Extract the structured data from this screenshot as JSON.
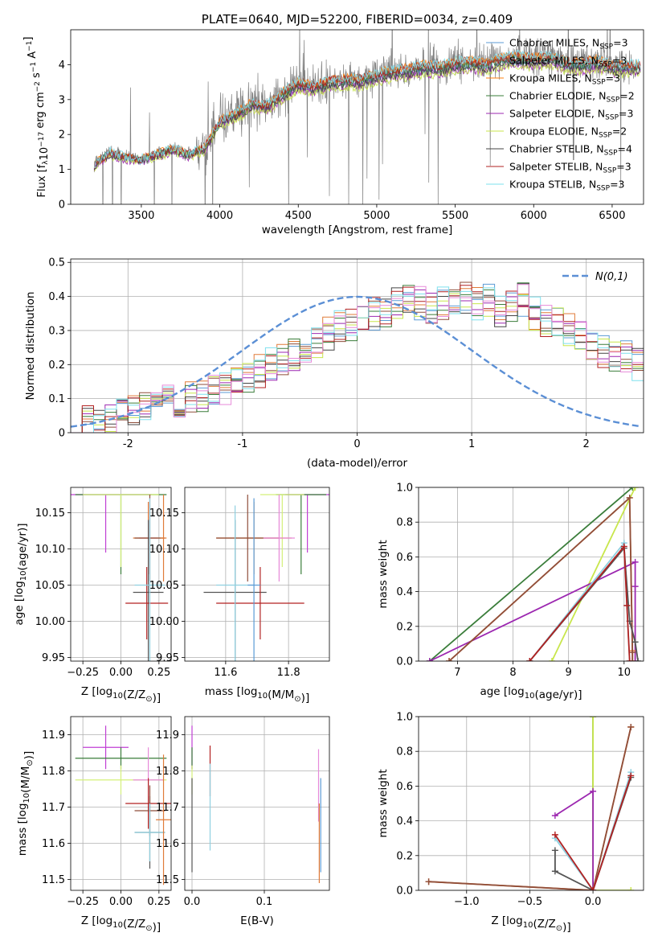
{
  "chart_data": [
    {
      "type": "line",
      "title": "PLATE=0640, MJD=52200, FIBERID=0034, z=0.409",
      "xlabel": "wavelength [Angstrom, rest frame]",
      "ylabel": "Flux [f_λ 10^-17 erg cm^-2 s^-1 A^-1]",
      "xlim": [
        3050,
        6700
      ],
      "ylim": [
        0,
        5
      ],
      "xticks": [
        3500,
        4000,
        4500,
        5000,
        5500,
        6000,
        6500
      ],
      "yticks": [
        0,
        1,
        2,
        3,
        4
      ],
      "grid": false,
      "legend_position": "top-right",
      "legend": [
        {
          "label": "Chabrier MILES, N",
          "sub": "SSP",
          "suffix": "=3",
          "color": "#5b9bd5"
        },
        {
          "label": "Salpeter MILES, N",
          "sub": "SSP",
          "suffix": "=3",
          "color": "#8f4e3a"
        },
        {
          "label": "Kroupa MILES, N",
          "sub": "SSP",
          "suffix": "=3",
          "color": "#ff7f0e"
        },
        {
          "label": "Chabrier ELODIE, N",
          "sub": "SSP",
          "suffix": "=2",
          "color": "#3a7d3a"
        },
        {
          "label": "Salpeter ELODIE, N",
          "sub": "SSP",
          "suffix": "=3",
          "color": "#9c27b0"
        },
        {
          "label": "Kroupa ELODIE, N",
          "sub": "SSP",
          "suffix": "=2",
          "color": "#c8e64c"
        },
        {
          "label": "Chabrier STELIB, N",
          "sub": "SSP",
          "suffix": "=4",
          "color": "#444444"
        },
        {
          "label": "Salpeter STELIB, N",
          "sub": "SSP",
          "suffix": "=3",
          "color": "#b22222"
        },
        {
          "label": "Kroupa STELIB, N",
          "sub": "SSP",
          "suffix": "=3",
          "color": "#7ee0ee"
        }
      ],
      "data_color": "#808080",
      "model_points": [
        [
          3200,
          1.15
        ],
        [
          3300,
          1.5
        ],
        [
          3400,
          1.35
        ],
        [
          3500,
          1.3
        ],
        [
          3600,
          1.45
        ],
        [
          3700,
          1.6
        ],
        [
          3800,
          1.45
        ],
        [
          3900,
          1.6
        ],
        [
          4000,
          2.4
        ],
        [
          4100,
          2.6
        ],
        [
          4200,
          2.9
        ],
        [
          4300,
          2.85
        ],
        [
          4400,
          3.2
        ],
        [
          4500,
          3.5
        ],
        [
          4600,
          3.4
        ],
        [
          4700,
          3.55
        ],
        [
          4800,
          3.6
        ],
        [
          4900,
          3.6
        ],
        [
          5000,
          3.75
        ],
        [
          5100,
          3.85
        ],
        [
          5200,
          3.9
        ],
        [
          5300,
          4.0
        ],
        [
          5400,
          3.95
        ],
        [
          5500,
          4.1
        ],
        [
          5600,
          4.1
        ],
        [
          5700,
          4.05
        ],
        [
          5800,
          4.2
        ],
        [
          5900,
          4.25
        ],
        [
          6000,
          4.2
        ],
        [
          6100,
          4.25
        ],
        [
          6200,
          4.1
        ],
        [
          6300,
          4.05
        ],
        [
          6400,
          4.15
        ],
        [
          6500,
          4.0
        ],
        [
          6600,
          4.0
        ]
      ]
    },
    {
      "type": "histogram",
      "xlabel": "(data-model)/error",
      "ylabel": "Normed distribution",
      "xlim": [
        -2.5,
        2.5
      ],
      "ylim": [
        0,
        0.51
      ],
      "xticks": [
        -2,
        -1,
        0,
        1,
        2
      ],
      "yticks": [
        0.0,
        0.1,
        0.2,
        0.3,
        0.4,
        0.5
      ],
      "grid": true,
      "legend_position": "top-right",
      "legend_label": "N(0,1)",
      "bin_width": 0.1,
      "bin_start": -2.5,
      "values": [
        0.02,
        0.03,
        0.03,
        0.04,
        0.05,
        0.06,
        0.07,
        0.08,
        0.09,
        0.09,
        0.1,
        0.11,
        0.12,
        0.13,
        0.15,
        0.16,
        0.18,
        0.2,
        0.21,
        0.23,
        0.25,
        0.27,
        0.29,
        0.31,
        0.32,
        0.34,
        0.35,
        0.36,
        0.38,
        0.39,
        0.38,
        0.37,
        0.38,
        0.37,
        0.4,
        0.38,
        0.39,
        0.36,
        0.37,
        0.39,
        0.35,
        0.33,
        0.32,
        0.3,
        0.28,
        0.26,
        0.24,
        0.23,
        0.22,
        0.2
      ]
    },
    {
      "type": "scatter",
      "xlabel": "Z [log10(Z/Z⊙)]",
      "ylabel": "age  [log10(age/yr)]",
      "xlim": [
        -0.33,
        0.33
      ],
      "ylim": [
        9.945,
        10.185
      ],
      "xticks": [
        -0.25,
        0.0,
        0.25
      ],
      "xticklabels": [
        "−0.25",
        "0.00",
        "0.25"
      ],
      "yticks": [
        9.95,
        10.0,
        10.05,
        10.1,
        10.15
      ],
      "yticklabels": [
        "9.95",
        "10.00",
        "10.05",
        "10.10",
        "10.15"
      ],
      "grid": true,
      "points": [
        {
          "x": -0.1,
          "y": 10.175,
          "xerr": 0.3,
          "yerr": 0.0,
          "yerr_lo": 0.08,
          "color": "#c13fd4"
        },
        {
          "x": 0.0,
          "y": 10.175,
          "xerr": 0.3,
          "yerr_lo": 0.11,
          "yerr": 0.0,
          "color": "#3a7d3a"
        },
        {
          "x": 0.0,
          "y": 10.175,
          "xerr": 0.25,
          "yerr_lo": 0.1,
          "yerr": 0.0,
          "color": "#d4f07a"
        },
        {
          "x": 0.18,
          "y": 10.115,
          "xerr": 0.06,
          "yerr": 0.05,
          "color": "#e78ad9"
        },
        {
          "x": 0.18,
          "y": 10.115,
          "xerr": 0.1,
          "yerr": 0.05,
          "color": "#e07b39"
        },
        {
          "x": 0.19,
          "y": 10.115,
          "xerr": 0.1,
          "yerr": 0.06,
          "color": "#8f4e3a"
        },
        {
          "x": 0.18,
          "y": 10.04,
          "xerr": 0.1,
          "yerr": 0.1,
          "color": "#555555"
        },
        {
          "x": 0.17,
          "y": 10.025,
          "xerr": 0.14,
          "yerr": 0.05,
          "color": "#b22222"
        },
        {
          "x": 0.19,
          "y": 10.05,
          "xerr": 0.1,
          "yerr": 0.12,
          "color": "#8fd0e0"
        },
        {
          "x": 0.28,
          "y": 10.115,
          "xerr": 0.02,
          "yerr": 0.06,
          "color": "#e07b39"
        }
      ]
    },
    {
      "type": "scatter",
      "xlabel": "mass [log10(M/M⊙)]",
      "ylabel": "",
      "xlim": [
        11.47,
        11.93
      ],
      "ylim": [
        9.945,
        10.185
      ],
      "xticks": [
        11.6,
        11.8
      ],
      "yticks": [
        9.95,
        10.0,
        10.05,
        10.1,
        10.15
      ],
      "yticklabels": [
        "9.95",
        "10.00",
        "10.05",
        "10.10",
        "10.15"
      ],
      "grid": true,
      "points": [
        {
          "x": 11.86,
          "y": 10.175,
          "xerr": 0.07,
          "yerr_lo": 0.08,
          "yerr": 0.0,
          "color": "#c13fd4"
        },
        {
          "x": 11.84,
          "y": 10.175,
          "xerr": 0.08,
          "yerr_lo": 0.11,
          "yerr": 0.0,
          "color": "#3a7d3a"
        },
        {
          "x": 11.78,
          "y": 10.175,
          "xerr": 0.07,
          "yerr_lo": 0.1,
          "yerr": 0.0,
          "color": "#d4f07a"
        },
        {
          "x": 11.69,
          "y": 10.115,
          "xerr": 0.12,
          "yerr": 0.05,
          "color": "#e07b39"
        },
        {
          "x": 11.67,
          "y": 10.115,
          "xerr": 0.1,
          "yerr": 0.06,
          "color": "#8f4e3a"
        },
        {
          "x": 11.77,
          "y": 10.115,
          "xerr": 0.05,
          "yerr": 0.06,
          "color": "#e78ad9"
        },
        {
          "x": 11.63,
          "y": 10.04,
          "xerr": 0.1,
          "yerr": 0.1,
          "color": "#555555"
        },
        {
          "x": 11.71,
          "y": 10.025,
          "xerr": 0.14,
          "yerr": 0.05,
          "color": "#b22222"
        },
        {
          "x": 11.63,
          "y": 10.05,
          "xerr": 0.06,
          "yerr": 0.11,
          "color": "#8fd0e0"
        },
        {
          "x": 11.69,
          "y": 10.05,
          "xerr": 0.02,
          "yerr": 0.12,
          "color": "#5b9bd5"
        }
      ]
    },
    {
      "type": "line",
      "xlabel": "age  [log10(age/yr)]",
      "ylabel": "mass weight",
      "xlim": [
        6.3,
        10.35
      ],
      "ylim": [
        0,
        1
      ],
      "xticks": [
        7,
        8,
        9,
        10
      ],
      "yticks": [
        0.0,
        0.2,
        0.4,
        0.6,
        0.8,
        1.0
      ],
      "yticklabels": [
        "0.0",
        "0.2",
        "0.4",
        "0.6",
        "0.8",
        "1.0"
      ],
      "grid": true,
      "series": [
        {
          "color": "#3a7d3a",
          "x": [
            6.5,
            10.15
          ],
          "y": [
            0.0,
            1.0
          ]
        },
        {
          "color": "#c8e64c",
          "x": [
            8.7,
            10.2
          ],
          "y": [
            0.0,
            1.0
          ]
        },
        {
          "color": "#9c27b0",
          "x": [
            6.5,
            10.2,
            10.2,
            10.2
          ],
          "y": [
            0.0,
            0.57,
            0.43,
            0.0
          ]
        },
        {
          "color": "#e07b39",
          "x": [
            6.85,
            10.1,
            10.15,
            10.15
          ],
          "y": [
            0.0,
            0.94,
            0.06,
            0.0
          ]
        },
        {
          "color": "#8f4e3a",
          "x": [
            6.85,
            10.1,
            10.15,
            10.15
          ],
          "y": [
            0.0,
            0.94,
            0.05,
            0.0
          ]
        },
        {
          "color": "#8fd0e0",
          "x": [
            8.3,
            10.0,
            10.05,
            10.1
          ],
          "y": [
            0.0,
            0.68,
            0.32,
            0.0
          ]
        },
        {
          "color": "#555555",
          "x": [
            8.3,
            10.0,
            10.1,
            10.2,
            10.25
          ],
          "y": [
            0.0,
            0.65,
            0.23,
            0.11,
            0.0
          ]
        },
        {
          "color": "#b22222",
          "x": [
            8.3,
            10.0,
            10.05,
            10.1
          ],
          "y": [
            0.0,
            0.66,
            0.32,
            0.0
          ]
        }
      ]
    },
    {
      "type": "scatter",
      "xlabel": "Z [log10(Z/Z⊙)]",
      "ylabel": "mass [log10(M/M⊙)]",
      "xlim": [
        -0.33,
        0.33
      ],
      "ylim": [
        11.47,
        11.95
      ],
      "xticks": [
        -0.25,
        0.0,
        0.25
      ],
      "xticklabels": [
        "−0.25",
        "0.00",
        "0.25"
      ],
      "yticks": [
        11.5,
        11.6,
        11.7,
        11.8,
        11.9
      ],
      "grid": true,
      "points": [
        {
          "x": -0.1,
          "y": 11.865,
          "xerr": 0.15,
          "yerr": 0.06,
          "color": "#c13fd4"
        },
        {
          "x": 0.0,
          "y": 11.835,
          "xerr": 0.3,
          "yerr": 0.03,
          "color": "#3a7d3a"
        },
        {
          "x": 0.0,
          "y": 11.775,
          "xerr": 0.3,
          "yerr": 0.04,
          "color": "#d4f07a"
        },
        {
          "x": 0.18,
          "y": 11.775,
          "xerr": 0.1,
          "yerr": 0.09,
          "color": "#e78ad9"
        },
        {
          "x": 0.18,
          "y": 11.71,
          "xerr": 0.15,
          "yerr": 0.07,
          "color": "#b22222"
        },
        {
          "x": 0.19,
          "y": 11.63,
          "xerr": 0.1,
          "yerr": 0.1,
          "color": "#555555"
        },
        {
          "x": 0.19,
          "y": 11.69,
          "xerr": 0.1,
          "yerr": 0.07,
          "color": "#8f4e3a"
        },
        {
          "x": 0.19,
          "y": 11.63,
          "xerr": 0.1,
          "yerr": 0.08,
          "color": "#8fd0e0"
        },
        {
          "x": 0.28,
          "y": 11.665,
          "xerr": 0.05,
          "yerr": 0.18,
          "color": "#e07b39"
        }
      ]
    },
    {
      "type": "scatter",
      "xlabel": "E(B-V)",
      "ylabel": "",
      "xlim": [
        -0.01,
        0.19
      ],
      "ylim": [
        11.47,
        11.95
      ],
      "xticks": [
        0.0,
        0.1
      ],
      "xticklabels": [
        "0.0",
        "0.1"
      ],
      "yticks": [
        11.5,
        11.6,
        11.7,
        11.8,
        11.9
      ],
      "grid": true,
      "points": [
        {
          "x": 0.0,
          "y": 11.865,
          "xerr": 0.0,
          "yerr": 0.06,
          "color": "#c13fd4"
        },
        {
          "x": 0.0,
          "y": 11.835,
          "xerr": 0.0,
          "yerr": 0.03,
          "color": "#3a7d3a"
        },
        {
          "x": 0.0,
          "y": 11.775,
          "xerr": 0.0,
          "yerr": 0.04,
          "color": "#d4f07a"
        },
        {
          "x": 0.0,
          "y": 11.65,
          "xerr": 0.0,
          "yerr": 0.13,
          "color": "#555555"
        },
        {
          "x": 0.025,
          "y": 11.8,
          "xerr": 0.0,
          "yerr": 0.07,
          "color": "#b22222"
        },
        {
          "x": 0.025,
          "y": 11.7,
          "xerr": 0.0,
          "yerr": 0.12,
          "color": "#8fd0e0"
        },
        {
          "x": 0.175,
          "y": 11.76,
          "xerr": 0.0,
          "yerr": 0.1,
          "color": "#e78ad9"
        },
        {
          "x": 0.176,
          "y": 11.6,
          "xerr": 0.0,
          "yerr": 0.11,
          "color": "#e07b39"
        },
        {
          "x": 0.178,
          "y": 11.65,
          "xerr": 0.0,
          "yerr": 0.13,
          "color": "#5b9bd5"
        }
      ]
    },
    {
      "type": "line",
      "xlabel": "Z [log10(Z/Z⊙)]",
      "ylabel": "mass weight",
      "xlim": [
        -1.38,
        0.4
      ],
      "ylim": [
        0,
        1
      ],
      "xticks": [
        -1.0,
        -0.5,
        0.0
      ],
      "xticklabels": [
        "−1.0",
        "−0.5",
        "0.0"
      ],
      "yticks": [
        0.0,
        0.2,
        0.4,
        0.6,
        0.8,
        1.0
      ],
      "yticklabels": [
        "0.0",
        "0.2",
        "0.4",
        "0.6",
        "0.8",
        "1.0"
      ],
      "grid": true,
      "series": [
        {
          "color": "#3a7d3a",
          "x": [
            0.0,
            0.0
          ],
          "y": [
            1.0,
            0.0
          ]
        },
        {
          "color": "#c8e64c",
          "x": [
            0.0,
            0.0,
            0.3
          ],
          "y": [
            1.0,
            0.0,
            0.0
          ]
        },
        {
          "color": "#9c27b0",
          "x": [
            -0.3,
            0.0,
            0.0
          ],
          "y": [
            0.43,
            0.57,
            0.0
          ]
        },
        {
          "color": "#e07b39",
          "x": [
            -1.3,
            0.0,
            0.3,
            0.3
          ],
          "y": [
            0.05,
            0.0,
            0.94,
            0.94
          ]
        },
        {
          "color": "#8f4e3a",
          "x": [
            -1.3,
            0.0,
            0.3
          ],
          "y": [
            0.05,
            0.0,
            0.94
          ]
        },
        {
          "color": "#8fd0e0",
          "x": [
            -0.3,
            0.0,
            0.3
          ],
          "y": [
            0.3,
            0.0,
            0.68
          ]
        },
        {
          "color": "#555555",
          "x": [
            -0.3,
            -0.3,
            0.0,
            0.3
          ],
          "y": [
            0.23,
            0.11,
            0.0,
            0.65
          ]
        },
        {
          "color": "#b22222",
          "x": [
            -0.3,
            0.0,
            0.3
          ],
          "y": [
            0.32,
            0.0,
            0.66
          ]
        }
      ]
    }
  ]
}
